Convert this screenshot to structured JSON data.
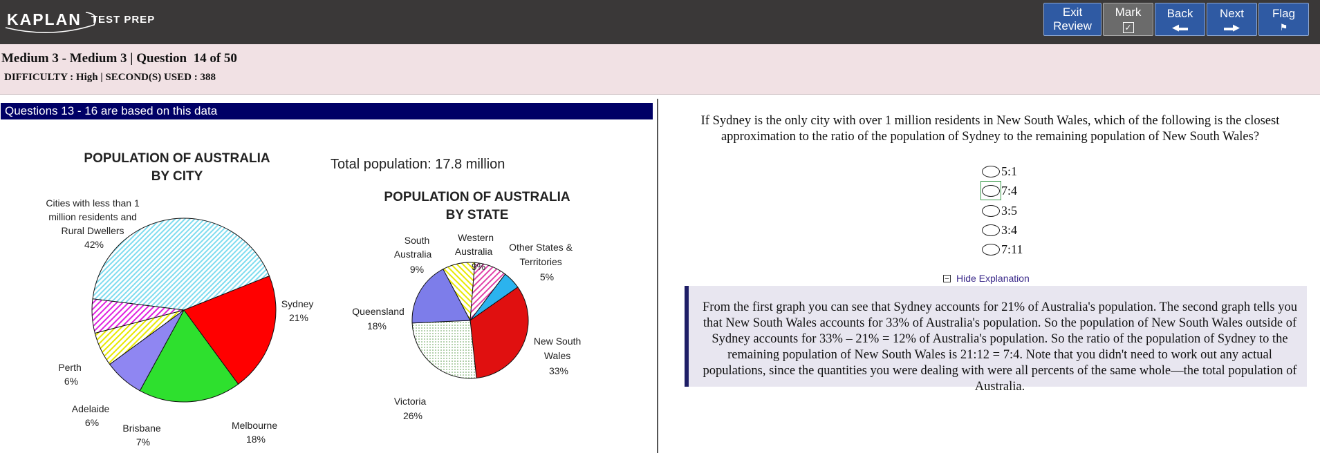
{
  "header": {
    "logo": {
      "main": "KAPLAN",
      "sub": "TEST PREP"
    },
    "buttons": [
      {
        "label_line1": "Exit",
        "label_line2": "Review",
        "icon": ""
      },
      {
        "label_line1": "Mark",
        "label_line2": "",
        "icon": "checkbox-checked-icon"
      },
      {
        "label_line1": "Back",
        "label_line2": "",
        "icon": "arrow-left-icon"
      },
      {
        "label_line1": "Next",
        "label_line2": "",
        "icon": "arrow-right-icon"
      },
      {
        "label_line1": "Flag",
        "label_line2": "",
        "icon": "flag-icon"
      }
    ]
  },
  "info": {
    "title": "Medium 3 - Medium 3 | Question  14 of 50",
    "difficulty": "DIFFICULTY : High | SECOND(S) USED : 388"
  },
  "left_panel": {
    "banner": "Questions 13 - 16 are based on this data",
    "total_population": "Total population: 17.8 million"
  },
  "chart_data": [
    {
      "type": "pie",
      "title": "POPULATION OF AUSTRALIA BY CITY",
      "slices": [
        {
          "name": "Cities with less than 1 million residents and Rural Dwellers",
          "value": 42,
          "label": "42%",
          "color": "#bfeff5"
        },
        {
          "name": "Sydney",
          "value": 21,
          "label": "21%",
          "color": "#ff0000"
        },
        {
          "name": "Melbourne",
          "value": 18,
          "label": "18%",
          "color": "#2ee02e"
        },
        {
          "name": "Brisbane",
          "value": 7,
          "label": "7%",
          "color": "#8f86f2"
        },
        {
          "name": "Adelaide",
          "value": 6,
          "label": "6%",
          "color": "#ffff80"
        },
        {
          "name": "Perth",
          "value": 6,
          "label": "6%",
          "color": "#f08cf0"
        }
      ]
    },
    {
      "type": "pie",
      "title": "POPULATION OF AUSTRALIA BY STATE",
      "slices": [
        {
          "name": "Other States & Territories",
          "value": 5,
          "label": "5%",
          "color": "#2bb3ee"
        },
        {
          "name": "New South Wales",
          "value": 33,
          "label": "33%",
          "color": "#e01010"
        },
        {
          "name": "Victoria",
          "value": 26,
          "label": "26%",
          "color": "#e8f7e0"
        },
        {
          "name": "Queensland",
          "value": 18,
          "label": "18%",
          "color": "#7d7dea"
        },
        {
          "name": "South Australia",
          "value": 9,
          "label": "9%",
          "color": "#ffff80"
        },
        {
          "name": "Western Australia",
          "value": 9,
          "label": "9%",
          "color": "#ef86c8"
        }
      ]
    }
  ],
  "question": {
    "text": "If Sydney is the only city with over 1 million residents in New South Wales, which of the following is the closest approximation to the ratio of the population of Sydney to the remaining population of New South Wales?",
    "choices": [
      "5:1",
      "7:4",
      "3:5",
      "3:4",
      "7:11"
    ],
    "focused_choice": 1,
    "hide_explanation": "Hide Explanation",
    "explanation": "From the first graph you can see that Sydney accounts for 21% of Australia's population. The second graph tells you that New South Wales accounts for 33% of Australia's population. So the population of New South Wales outside of Sydney accounts for 33% – 21% = 12% of Australia's population. So the ratio of the population of Sydney to the remaining population of New South Wales is 21:12 = 7:4. Note that you didn't need to work out any actual populations, since the quantities you were dealing with were all percents of the same whole—the total population of Australia."
  }
}
